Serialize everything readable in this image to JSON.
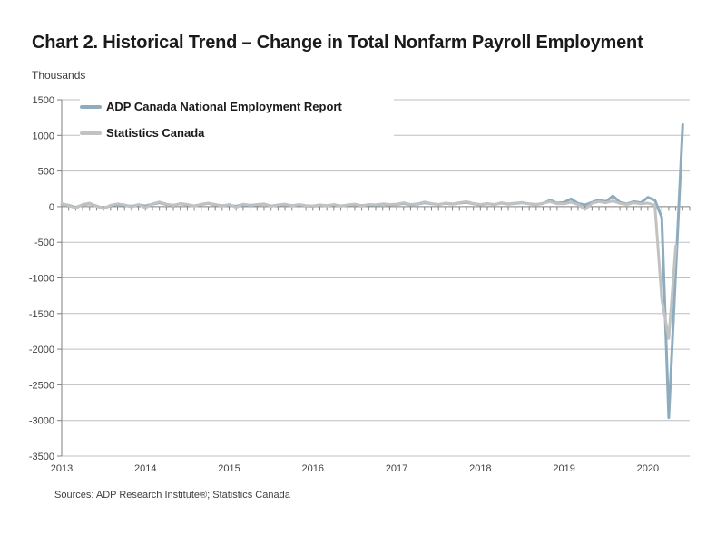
{
  "page": {
    "title": "Chart 2. Historical Trend – Change in Total Nonfarm Payroll Employment",
    "unit_label": "Thousands",
    "sources": "Sources: ADP Research Institute®; Statistics Canada"
  },
  "legend": [
    {
      "label": "ADP Canada National Employment Report",
      "color": "#8FACBE"
    },
    {
      "label": "Statistics Canada",
      "color": "#C2C2C2"
    }
  ],
  "chart_data": {
    "type": "line",
    "title": "Chart 2. Historical Trend – Change in Total Nonfarm Payroll Employment",
    "xlabel": "",
    "ylabel": "Thousands",
    "ylim": [
      -3500,
      1500
    ],
    "y_ticks": [
      1500,
      1000,
      500,
      0,
      -500,
      -1000,
      -1500,
      -2000,
      -2500,
      -3000,
      -3500
    ],
    "x_years": [
      "2013",
      "2014",
      "2015",
      "2016",
      "2017",
      "2018",
      "2019",
      "2020"
    ],
    "x_start": "2013-01",
    "frequency": "monthly",
    "grid": "horizontal",
    "legend_position": "top-left",
    "colors": {
      "grid": "#BFBFBF",
      "axis": "#7F7F7F",
      "tick_text": "#404040"
    },
    "series": [
      {
        "name": "ADP Canada National Employment Report",
        "data_name": "adp-line",
        "color": "#8FACBE",
        "values": [
          35,
          20,
          -10,
          25,
          40,
          10,
          -25,
          15,
          30,
          20,
          5,
          25,
          10,
          35,
          55,
          30,
          20,
          40,
          25,
          10,
          30,
          45,
          25,
          15,
          20,
          5,
          30,
          15,
          25,
          35,
          10,
          20,
          30,
          15,
          25,
          10,
          5,
          20,
          15,
          25,
          10,
          20,
          30,
          15,
          25,
          20,
          35,
          25,
          30,
          45,
          25,
          35,
          55,
          40,
          30,
          45,
          35,
          50,
          60,
          40,
          25,
          40,
          30,
          50,
          35,
          45,
          55,
          40,
          30,
          45,
          90,
          50,
          60,
          110,
          45,
          25,
          60,
          95,
          70,
          150,
          60,
          40,
          70,
          55,
          130,
          90,
          -150,
          -2960,
          -905,
          1150
        ]
      },
      {
        "name": "Statistics Canada",
        "data_name": "statcan-line",
        "color": "#C2C2C2",
        "values": [
          45,
          15,
          -20,
          30,
          50,
          5,
          -30,
          20,
          40,
          25,
          -5,
          30,
          -15,
          40,
          65,
          35,
          15,
          45,
          30,
          5,
          35,
          50,
          30,
          10,
          30,
          -10,
          35,
          20,
          30,
          40,
          5,
          25,
          35,
          10,
          30,
          15,
          10,
          25,
          10,
          30,
          5,
          25,
          35,
          10,
          30,
          25,
          40,
          30,
          35,
          55,
          30,
          40,
          65,
          45,
          25,
          50,
          40,
          55,
          70,
          45,
          30,
          45,
          25,
          55,
          40,
          50,
          60,
          35,
          25,
          50,
          70,
          40,
          40,
          60,
          30,
          -40,
          50,
          70,
          55,
          80,
          45,
          30,
          55,
          40,
          50,
          20,
          -1300,
          -1850,
          -550
        ]
      }
    ]
  }
}
